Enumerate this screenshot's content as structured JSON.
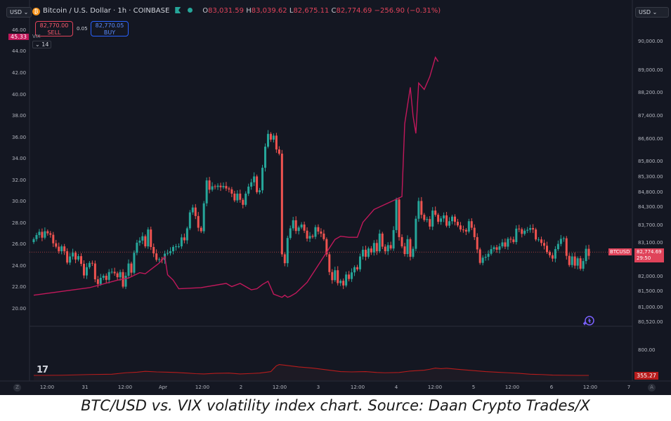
{
  "header": {
    "currency_left": "USD",
    "currency_right": "USD",
    "title": "Bitcoin / U.S. Dollar · 1h · COINBASE",
    "ohlc": {
      "o_label": "O",
      "o": "83,031.59",
      "h_label": "H",
      "h": "83,039.62",
      "l_label": "L",
      "l": "82,675.11",
      "c_label": "C",
      "c": "82,774.69",
      "change": "−256.90 (−0.31%)"
    },
    "sell_price": "82,770.00",
    "sell_label": "SELL",
    "spread": "0.05",
    "buy_price": "82,770.05",
    "buy_label": "BUY",
    "vix_value": "45.33",
    "vix_name": "VIX",
    "collapse_count": "14"
  },
  "price_tag": {
    "symbol": "BTCUSD",
    "price": "82,774.69",
    "timer": "29:50"
  },
  "sub_tag": "355.27",
  "logo_text": "17",
  "corner_left": "Z",
  "corner_right": "A",
  "caption": "BTC/USD vs. VIX volatility index chart. Source: Daan Crypto Trades/X",
  "colors": {
    "up": "#26a69a",
    "down": "#ef5350",
    "vix": "#c2185b",
    "sub": "#b71c1c",
    "background": "#141722"
  },
  "chart_data": {
    "type": "line",
    "xaxis_ticks": [
      "12:00",
      "31",
      "12:00",
      "Apr",
      "12:00",
      "2",
      "12:00",
      "3",
      "12:00",
      "4",
      "12:00",
      "5",
      "12:00",
      "6",
      "12:00",
      "7"
    ],
    "right_axis_ticks": [
      "90,000.00",
      "89,000.00",
      "88,200.00",
      "87,400.00",
      "86,600.00",
      "85,800.00",
      "85,300.00",
      "84,800.00",
      "84,300.00",
      "83,700.00",
      "83,100.00",
      "82,000.00",
      "81,500.00",
      "81,000.00",
      "80,520.00"
    ],
    "left_axis_ticks": [
      "46.00",
      "44.00",
      "42.00",
      "40.00",
      "38.00",
      "36.00",
      "34.00",
      "32.00",
      "30.00",
      "28.00",
      "26.00",
      "24.00",
      "22.00",
      "20.00"
    ],
    "sub_axis_ticks": [
      "800.00"
    ],
    "series": [
      {
        "name": "BTCUSD",
        "type": "candlestick",
        "x": [
          0,
          1,
          2,
          3,
          4,
          5,
          6,
          7,
          8,
          9,
          10,
          11,
          12,
          13,
          14,
          15,
          16,
          17,
          18,
          19,
          20,
          21,
          22,
          23,
          24,
          25,
          26,
          27,
          28,
          29,
          30,
          31,
          32,
          33,
          34,
          35,
          36,
          37,
          38,
          39,
          40,
          41,
          42,
          43,
          44,
          45,
          46,
          47,
          48,
          49,
          50,
          51,
          52,
          53,
          54,
          55,
          56,
          57,
          58,
          59,
          60,
          61,
          62,
          63,
          64,
          65,
          66,
          67,
          68,
          69,
          70,
          71,
          72,
          73,
          74,
          75,
          76,
          77,
          78,
          79,
          80,
          81,
          82,
          83,
          84,
          85,
          86,
          87,
          88,
          89,
          90,
          91,
          92,
          93,
          94,
          95,
          96,
          97,
          98,
          99,
          100,
          101,
          102,
          103,
          104,
          105,
          106,
          107,
          108,
          109,
          110,
          111,
          112,
          113,
          114,
          115,
          116,
          117,
          118,
          119,
          120,
          121,
          122,
          123,
          124,
          125,
          126,
          127,
          128,
          129,
          130,
          131,
          132,
          133,
          134,
          135,
          136,
          137,
          138,
          139,
          140,
          141,
          142,
          143,
          144,
          145,
          146,
          147,
          148,
          149,
          150,
          151,
          152,
          153,
          154,
          155,
          156,
          157,
          158,
          159,
          160,
          161,
          162,
          163,
          164,
          165,
          166,
          167,
          168,
          169,
          170,
          171,
          172,
          173,
          174,
          175,
          176,
          177,
          178,
          179,
          180,
          181,
          182,
          183,
          184,
          185,
          186,
          187,
          188,
          189,
          190,
          191,
          192,
          193,
          194,
          195,
          196,
          197,
          198,
          199
        ],
        "close": [
          83200,
          83340,
          83450,
          83250,
          83470,
          83400,
          83350,
          83060,
          82950,
          82800,
          82960,
          82800,
          82430,
          82630,
          82750,
          82530,
          82640,
          82390,
          82010,
          82280,
          82420,
          82400,
          81880,
          81720,
          81930,
          82000,
          81860,
          82120,
          82130,
          82080,
          81950,
          82120,
          81630,
          82000,
          82400,
          82100,
          82750,
          83080,
          83150,
          83300,
          82960,
          83530,
          82940,
          82730,
          82520,
          82540,
          82510,
          82720,
          82740,
          82800,
          82940,
          82960,
          82960,
          83260,
          83160,
          83570,
          84100,
          84260,
          83980,
          83590,
          83470,
          84400,
          85160,
          84860,
          84970,
          84950,
          84990,
          84940,
          84980,
          84900,
          84870,
          84730,
          84500,
          84730,
          84520,
          84350,
          84730,
          84960,
          85100,
          85290,
          84780,
          84840,
          85570,
          86300,
          86750,
          86550,
          86690,
          86200,
          86050,
          82700,
          82410,
          83240,
          83570,
          83840,
          83480,
          83600,
          83700,
          83490,
          83220,
          83310,
          83280,
          83610,
          83460,
          83390,
          83200,
          82700,
          82120,
          81850,
          82180,
          81750,
          81830,
          81670,
          82040,
          81890,
          82110,
          82280,
          82210,
          82630,
          82850,
          82620,
          82890,
          82760,
          83070,
          82800,
          83390,
          82950,
          82800,
          83000,
          82890,
          83510,
          84530,
          83270,
          82960,
          82710,
          83200,
          82620,
          82880,
          83890,
          84480,
          84020,
          83850,
          83880,
          83630,
          84160,
          84020,
          83790,
          83900,
          84000,
          83660,
          83810,
          83960,
          83790,
          83670,
          83530,
          83520,
          83460,
          83810,
          83590,
          83270,
          82860,
          82420,
          82590,
          82620,
          82720,
          82870,
          82930,
          82850,
          82960,
          83090,
          82950,
          83210,
          83190,
          83100,
          83560,
          83540,
          83380,
          83490,
          83520,
          83580,
          83530,
          83190,
          83190,
          83070,
          82980,
          82770,
          82670,
          82560,
          82870,
          83040,
          83210,
          83230,
          82650,
          82350,
          82630,
          82330,
          82570,
          82230,
          82480,
          82880,
          82650
        ]
      },
      {
        "name": "VIX",
        "type": "line",
        "x": [
          0,
          20,
          30,
          34,
          38,
          40,
          44,
          45,
          47,
          48,
          50,
          52,
          60,
          69,
          71,
          74,
          78,
          80,
          82,
          84,
          86,
          89,
          90,
          91,
          92,
          94,
          96,
          98,
          102,
          108,
          110,
          113,
          116,
          118,
          122,
          127,
          132,
          133,
          135,
          136,
          137,
          138,
          140,
          142,
          144,
          145
        ],
        "y": [
          21.2,
          21.9,
          22.6,
          22.8,
          23.3,
          23.2,
          24.0,
          24.2,
          24.8,
          23.1,
          22.6,
          21.8,
          21.9,
          22.3,
          22.0,
          22.3,
          21.7,
          21.8,
          22.2,
          22.5,
          21.3,
          21.0,
          21.2,
          21.0,
          21.1,
          21.4,
          21.9,
          22.4,
          24.0,
          26.4,
          26.7,
          26.6,
          26.6,
          28.0,
          29.2,
          29.8,
          30.4,
          37.2,
          40.6,
          37.9,
          36.3,
          41.0,
          40.4,
          41.6,
          43.4,
          43.0
        ]
      },
      {
        "name": "",
        "type": "line",
        "x": [
          0,
          10,
          20,
          28,
          33,
          37,
          40,
          44,
          48,
          51,
          55,
          58,
          61,
          65,
          70,
          74,
          78,
          81,
          85,
          86,
          87,
          88,
          90,
          95,
          100,
          105,
          110,
          114,
          119,
          123,
          126,
          131,
          135,
          140,
          142,
          144,
          146,
          148,
          152,
          157,
          162,
          166,
          170,
          174,
          178,
          182,
          186,
          190,
          195,
          199
        ],
        "y": [
          355,
          358,
          370,
          375,
          400,
          410,
          425,
          415,
          410,
          405,
          395,
          385,
          380,
          390,
          395,
          380,
          388,
          395,
          420,
          470,
          520,
          540,
          530,
          500,
          480,
          450,
          420,
          415,
          420,
          405,
          400,
          405,
          430,
          445,
          460,
          480,
          470,
          478,
          460,
          440,
          420,
          410,
          400,
          390,
          375,
          370,
          360,
          358,
          355,
          355
        ]
      }
    ]
  }
}
